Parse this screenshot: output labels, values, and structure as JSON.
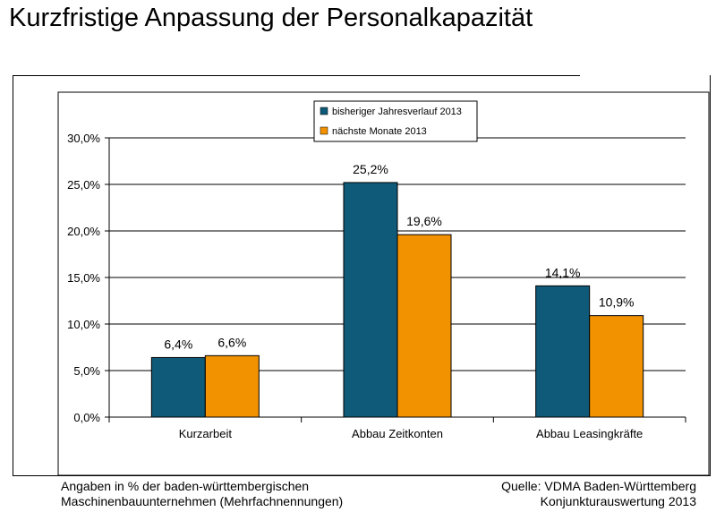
{
  "header": {
    "title": "Kurzfristige Anpassung der Personalkapazität"
  },
  "footnote": {
    "left_line1": "Angaben in % der baden-württembergischen",
    "left_line2": "Maschinenbauunternehmen (Mehrfachnennungen)",
    "right_line1": "Quelle: VDMA Baden-Württemberg",
    "right_line2": "Konjunkturauswertung 2013"
  },
  "chart_data": {
    "type": "bar",
    "categories": [
      "Kurzarbeit",
      "Abbau Zeitkonten",
      "Abbau Leasingkräfte"
    ],
    "series": [
      {
        "name": "bisheriger Jahresverlauf 2013",
        "values": [
          6.4,
          25.2,
          14.1
        ],
        "labels": [
          "6,4%",
          "25,2%",
          "14,1%"
        ],
        "color": "#0e5a78"
      },
      {
        "name": "nächste Monate 2013",
        "values": [
          6.6,
          19.6,
          10.9
        ],
        "labels": [
          "6,6%",
          "19,6%",
          "10,9%"
        ],
        "color": "#f39200"
      }
    ],
    "yticks": [
      0,
      5,
      10,
      15,
      20,
      25,
      30
    ],
    "ytick_labels": [
      "0,0%",
      "5,0%",
      "10,0%",
      "15,0%",
      "20,0%",
      "25,0%",
      "30,0%"
    ],
    "ylim": [
      0,
      30
    ],
    "grid": true,
    "legend_position": "top-center"
  }
}
